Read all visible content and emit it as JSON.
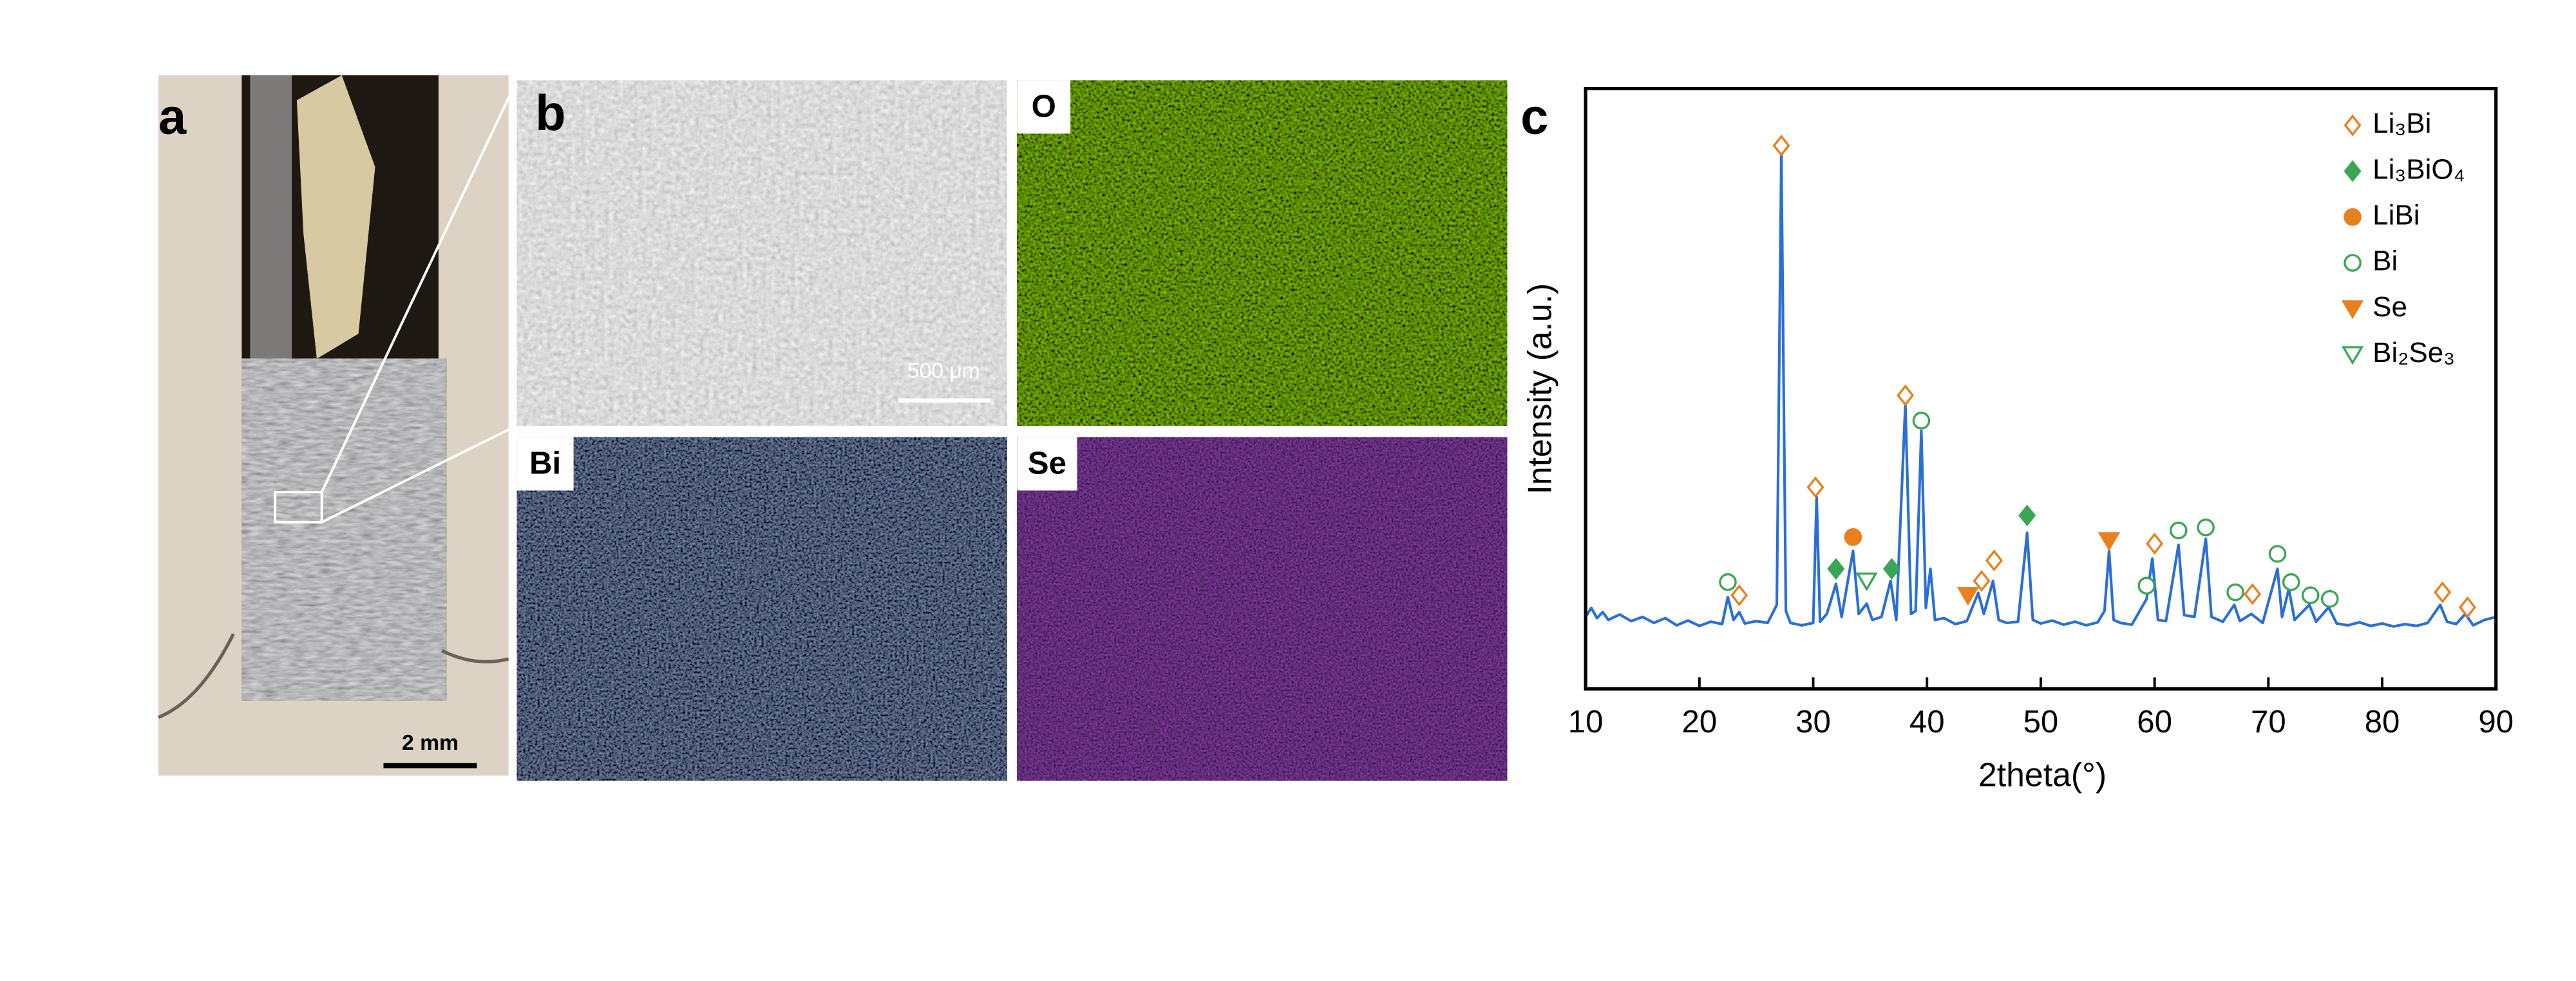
{
  "panels": {
    "a": {
      "label": "a",
      "scale_bar": "2 mm"
    },
    "b": {
      "label": "b",
      "scale_bar": "500 μm"
    },
    "o": {
      "label": "O"
    },
    "bi": {
      "label": "Bi"
    },
    "se": {
      "label": "Se"
    }
  },
  "chart_data": {
    "type": "line",
    "panel_label": "c",
    "x_label": "2theta(°)",
    "y_label": "Intensity (a.u.)",
    "xlim": [
      10,
      90
    ],
    "xticks": [
      10,
      20,
      30,
      40,
      50,
      60,
      70,
      80,
      90
    ],
    "ylim": [
      0,
      100
    ],
    "pattern": {
      "color": "#2a6fd6",
      "x": [
        10,
        10.5,
        11,
        11.5,
        12,
        13,
        14,
        15,
        16,
        17,
        18,
        19,
        20,
        21,
        22,
        22.5,
        23,
        23.5,
        24,
        25,
        26,
        26.8,
        27.2,
        27.6,
        28,
        29,
        30,
        30.3,
        30.6,
        31.2,
        32,
        32.5,
        33.5,
        34,
        34.7,
        35.2,
        36,
        36.8,
        37.3,
        38.1,
        38.6,
        39,
        39.5,
        39.9,
        40.3,
        40.7,
        41.5,
        42.5,
        43.5,
        44.5,
        45,
        45.8,
        46.3,
        47,
        48,
        48.8,
        49.3,
        50,
        51,
        52,
        53,
        54,
        55,
        55.6,
        56,
        56.4,
        57,
        58,
        59.3,
        59.8,
        60.3,
        61,
        62.1,
        62.6,
        63.5,
        64.5,
        65,
        66,
        67,
        67.5,
        68.5,
        69.5,
        70.8,
        71.2,
        71.8,
        72.3,
        73.6,
        74.2,
        75.3,
        76,
        77,
        78,
        79,
        80,
        81,
        82,
        83,
        84,
        85.1,
        85.7,
        86.5,
        87.3,
        88,
        89,
        90
      ],
      "values": [
        12,
        13.5,
        11.8,
        12.8,
        11.5,
        12.4,
        11.3,
        12,
        11,
        11.8,
        10.6,
        11.4,
        10.5,
        11.2,
        10.8,
        15.3,
        11.5,
        12.8,
        10.9,
        11.3,
        11,
        14,
        89,
        13,
        11,
        10.6,
        11,
        32,
        11.2,
        12.5,
        17.5,
        12,
        23,
        12.5,
        14.2,
        11.5,
        12,
        18,
        11.5,
        47.5,
        12.5,
        13,
        43,
        13.5,
        20,
        11.5,
        11.8,
        10.8,
        11.3,
        16,
        12.5,
        18,
        11.5,
        11,
        11.2,
        26,
        11.5,
        10.9,
        11.4,
        10.7,
        11.2,
        10.6,
        11.1,
        13,
        23,
        11.5,
        11,
        10.7,
        15,
        21.7,
        11.5,
        11.3,
        24,
        12.3,
        12,
        25,
        12,
        11.2,
        14,
        11.3,
        12.5,
        11,
        20,
        12,
        16.7,
        11.5,
        14,
        11.2,
        13.6,
        10.9,
        10.6,
        11.1,
        10.5,
        10.9,
        10.4,
        10.8,
        10.5,
        11,
        14,
        11.2,
        10.8,
        12.5,
        10.6,
        11.5,
        12
      ]
    },
    "series": [
      {
        "name": "Li₃Bi",
        "color": "#e8801e",
        "marker": "diamond-open",
        "x": [
          23.5,
          27.2,
          30.2,
          38.1,
          44.8,
          45.9,
          60,
          68.6,
          85.3,
          87.5
        ],
        "values": [
          15.6,
          90.5,
          33.6,
          48.9,
          18,
          21.4,
          24.2,
          15.8,
          16.1,
          13.6
        ]
      },
      {
        "name": "Li₃BiO₄",
        "color": "#3aa655",
        "marker": "diamond",
        "x": [
          32,
          36.9,
          48.8
        ],
        "values": [
          20,
          20,
          28.9
        ]
      },
      {
        "name": "LiBi",
        "color": "#e8801e",
        "marker": "circle",
        "x": [
          33.5
        ],
        "values": [
          25.3
        ]
      },
      {
        "name": "Bi",
        "color": "#3aa655",
        "marker": "circle-open",
        "x": [
          22.5,
          39.5,
          59.3,
          62.1,
          64.5,
          67.1,
          70.8,
          72,
          73.7,
          75.4
        ],
        "values": [
          17.8,
          44.7,
          17.2,
          26.4,
          26.9,
          16.1,
          22.5,
          17.8,
          15.6,
          15
        ]
      },
      {
        "name": "Se",
        "color": "#e8801e",
        "marker": "triangle-down",
        "x": [
          43.6,
          56
        ],
        "values": [
          15.6,
          24.7
        ]
      },
      {
        "name": "Bi₂Se₃",
        "color": "#3aa655",
        "marker": "triangle-down-open",
        "x": [
          34.7
        ],
        "values": [
          18
        ]
      }
    ]
  }
}
